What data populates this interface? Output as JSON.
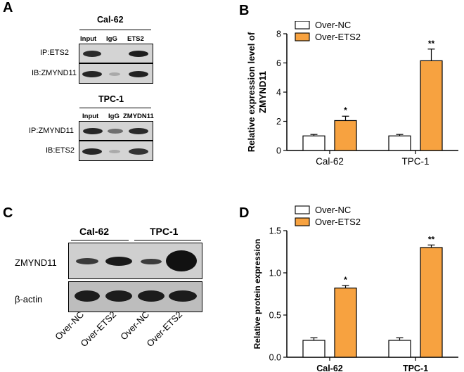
{
  "panels": {
    "a": "A",
    "b": "B",
    "c": "C",
    "d": "D"
  },
  "panel_a": {
    "group1": {
      "title": "Cal-62",
      "lanes": [
        "Input",
        "IgG",
        "ETS2"
      ],
      "rows": [
        "IP:ETS2",
        "IB:ZMYND11"
      ]
    },
    "group2": {
      "title": "TPC-1",
      "lanes": [
        "Input",
        "IgG",
        "ZMYDN11"
      ],
      "rows": [
        "IP:ZMYND11",
        "IB:ETS2"
      ]
    }
  },
  "panel_c": {
    "groups": [
      "Cal-62",
      "TPC-1"
    ],
    "rows": [
      "ZMYND11",
      "β-actin"
    ],
    "lanes": [
      "Over-NC",
      "Over-ETS2",
      "Over-NC",
      "Over-ETS2"
    ]
  },
  "colors": {
    "nc": "#ffffff",
    "ets2": "#f7a240"
  },
  "chart_data": [
    {
      "type": "bar",
      "title": "",
      "xlabel": "",
      "ylabel": "Relative expression level of ZMYND11",
      "ylabel_lines": [
        "Relative expression level of",
        "ZMYND11"
      ],
      "categories": [
        "Cal-62",
        "TPC-1"
      ],
      "series": [
        {
          "name": "Over-NC",
          "values": [
            1.0,
            1.0
          ],
          "errors": [
            0.1,
            0.1
          ]
        },
        {
          "name": "Over-ETS2",
          "values": [
            2.05,
            6.15
          ],
          "errors": [
            0.3,
            0.8
          ]
        }
      ],
      "significance": [
        "*",
        "**"
      ],
      "ylim": [
        0,
        8
      ],
      "yticks": [
        0,
        2,
        4,
        6,
        8
      ],
      "ytick_labels": [
        "0",
        "2",
        "4",
        "6",
        "8"
      ],
      "legend": "top-left"
    },
    {
      "type": "bar",
      "title": "",
      "xlabel": "",
      "ylabel": "Relative protein expression",
      "categories": [
        "Cal-62",
        "TPC-1"
      ],
      "series": [
        {
          "name": "Over-NC",
          "values": [
            0.2,
            0.2
          ],
          "errors": [
            0.03,
            0.03
          ]
        },
        {
          "name": "Over-ETS2",
          "values": [
            0.82,
            1.3
          ],
          "errors": [
            0.03,
            0.03
          ]
        }
      ],
      "significance": [
        "*",
        "**"
      ],
      "ylim": [
        0,
        1.5
      ],
      "yticks": [
        0,
        0.5,
        1.0,
        1.5
      ],
      "ytick_labels": [
        "0.0",
        "0.5",
        "1.0",
        "1.5"
      ],
      "legend": "top-left"
    }
  ]
}
